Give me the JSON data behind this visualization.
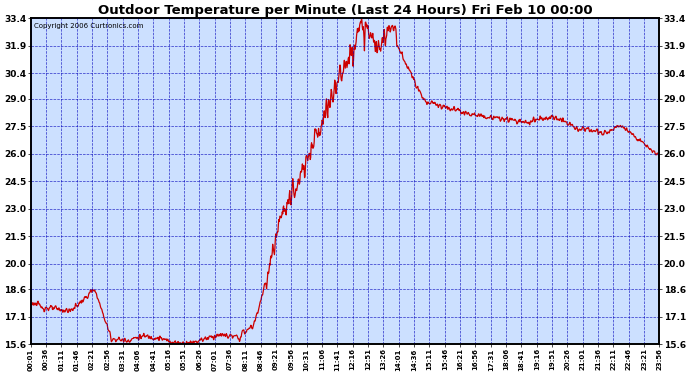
{
  "title": "Outdoor Temperature per Minute (Last 24 Hours) Fri Feb 10 00:00",
  "copyright": "Copyright 2006 Curtronics.com",
  "yticks": [
    15.6,
    17.1,
    18.6,
    20.0,
    21.5,
    23.0,
    24.5,
    26.0,
    27.5,
    29.0,
    30.4,
    31.9,
    33.4
  ],
  "ymin": 15.6,
  "ymax": 33.4,
  "line_color": "#cc0000",
  "bg_color": "#cce0ff",
  "grid_color": "#0000bb",
  "border_color": "#000000",
  "title_color": "#000000",
  "xtick_labels": [
    "00:01",
    "00:36",
    "01:11",
    "01:46",
    "02:21",
    "02:56",
    "03:31",
    "04:06",
    "04:41",
    "05:16",
    "05:51",
    "06:26",
    "07:01",
    "07:36",
    "08:11",
    "08:46",
    "09:21",
    "09:56",
    "10:31",
    "11:06",
    "11:41",
    "12:16",
    "12:51",
    "13:26",
    "14:01",
    "14:36",
    "15:11",
    "15:46",
    "16:21",
    "16:56",
    "17:31",
    "18:06",
    "18:41",
    "19:16",
    "19:51",
    "20:26",
    "21:01",
    "21:36",
    "22:11",
    "22:46",
    "23:21",
    "23:56"
  ],
  "figsize": [
    6.9,
    3.75
  ],
  "dpi": 100
}
